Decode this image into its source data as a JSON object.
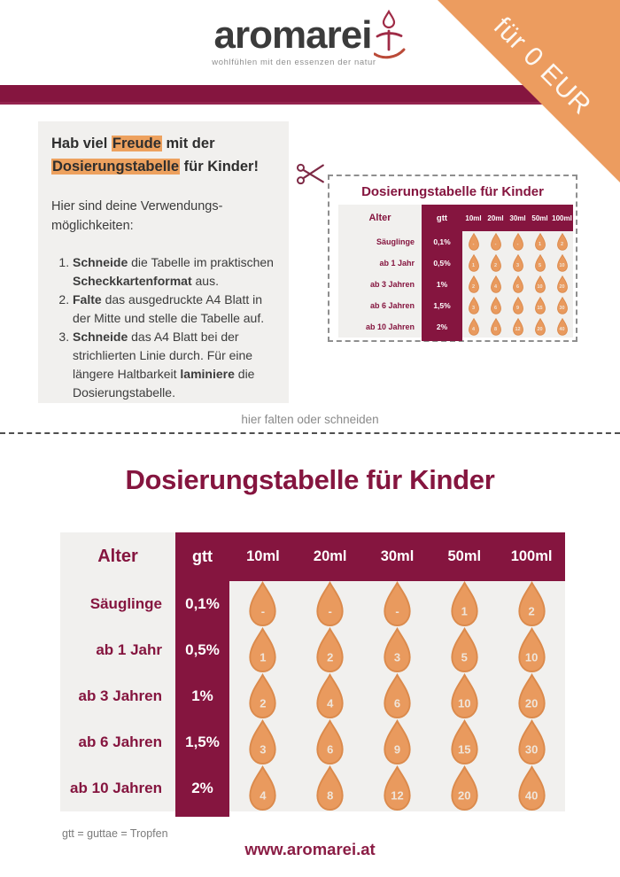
{
  "logo": {
    "name": "aromarei",
    "tagline": "wohlfühlen mit den essenzen der natur"
  },
  "ribbon": {
    "label": "für 0 EUR"
  },
  "intro_box": {
    "title_pre": "Hab viel ",
    "title_highlight1": "Freude",
    "title_mid": " mit der",
    "title_highlight2": "Dosierungstabelle",
    "title_post": " für Kinder!",
    "subtitle_line1": "Hier sind deine Verwendungs-",
    "subtitle_line2": "möglichkeiten:",
    "steps": [
      [
        {
          "t": "Schneide",
          "b": true
        },
        {
          "t": " die Tabelle im praktischen "
        },
        {
          "t": "Scheckkartenformat",
          "b": true
        },
        {
          "t": " aus."
        }
      ],
      [
        {
          "t": "Falte",
          "b": true
        },
        {
          "t": " das ausgedruckte A4 Blatt in der Mitte und stelle die Tabelle auf."
        }
      ],
      [
        {
          "t": "Schneide",
          "b": true
        },
        {
          "t": " das A4 Blatt bei der strichlierten Linie durch. Für eine längere Haltbarkeit "
        },
        {
          "t": "laminiere",
          "b": true
        },
        {
          "t": " die Dosierungstabelle."
        }
      ]
    ]
  },
  "fold_line": {
    "label": "hier falten oder schneiden"
  },
  "preview_card": {
    "title": "Dosierungstabelle für Kinder"
  },
  "main_title": "Dosierungstabelle für Kinder",
  "dosage_table": {
    "col_headers": [
      "Alter",
      "gtt",
      "10ml",
      "20ml",
      "30ml",
      "50ml",
      "100ml"
    ],
    "rows": [
      {
        "label": "Säuglinge",
        "gtt": "0,1%",
        "drops": [
          "-",
          "-",
          "-",
          "1",
          "2"
        ]
      },
      {
        "label": "ab 1 Jahr",
        "gtt": "0,5%",
        "drops": [
          "1",
          "2",
          "3",
          "5",
          "10"
        ]
      },
      {
        "label": "ab 3 Jahren",
        "gtt": "1%",
        "drops": [
          "2",
          "4",
          "6",
          "10",
          "20"
        ]
      },
      {
        "label": "ab 6 Jahren",
        "gtt": "1,5%",
        "drops": [
          "3",
          "6",
          "9",
          "15",
          "30"
        ]
      },
      {
        "label": "ab 10 Jahren",
        "gtt": "2%",
        "drops": [
          "4",
          "8",
          "12",
          "20",
          "40"
        ]
      }
    ]
  },
  "footnote": "gtt = guttae = Tropfen",
  "website": "www.aromarei.at",
  "colors": {
    "maroon": "#85153F",
    "orange": "#EC9C5F",
    "droplet_fill": "#E99A5E",
    "droplet_stroke": "#DB8A4C",
    "light_gray": "#F1F0EE",
    "highlight": "#EDA15E"
  }
}
